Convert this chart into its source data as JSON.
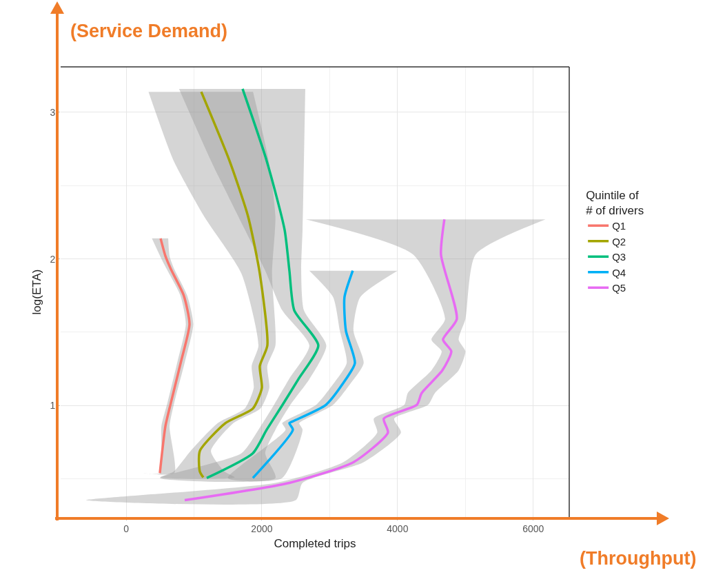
{
  "chart_data": {
    "type": "line",
    "xlabel": "Completed trips",
    "ylabel": "log(ETA)",
    "legend_title": "Quintile of\n# of drivers",
    "annotations": [
      "(Service Demand)",
      "(Throughput)"
    ],
    "xlim": [
      -965,
      6530
    ],
    "xticks": [
      0,
      2000,
      4000,
      6000
    ],
    "ylim": [
      0.24,
      3.31
    ],
    "yticks": [
      1,
      2,
      3
    ],
    "grid": true,
    "legend": "right",
    "line_style": "solid",
    "marker": "none",
    "series": [
      {
        "type": "area",
        "color": "#969696",
        "x": [
          620,
          640,
          710,
          900,
          990,
          870,
          710,
          640,
          710,
          240,
          497,
          520,
          610,
          760,
          880,
          800,
          600,
          500,
          380
        ],
        "values": [
          2.14,
          2.02,
          1.93,
          1.75,
          1.555,
          1.306,
          1.02,
          0.86,
          0.54,
          0.54,
          0.54,
          0.86,
          1.02,
          1.306,
          1.555,
          1.75,
          1.93,
          2.02,
          2.14
        ]
      },
      {
        "type": "area",
        "color": "#969696",
        "x": [
          1870,
          2100,
          2200,
          2150,
          2200,
          2080,
          2110,
          1980,
          1580,
          1250,
          1450,
          1600,
          500,
          700,
          950,
          1350,
          1750,
          1880,
          1850,
          1950,
          1700,
          1150,
          700,
          330
        ],
        "values": [
          3.14,
          2.67,
          2.29,
          1.9,
          1.41,
          1.27,
          1.12,
          0.98,
          0.88,
          0.69,
          0.55,
          0.51,
          0.51,
          0.55,
          0.69,
          0.88,
          0.98,
          1.12,
          1.27,
          1.41,
          1.9,
          2.29,
          2.67,
          3.14
        ]
      },
      {
        "type": "area",
        "color": "#969696",
        "x": [
          2640,
          2620,
          2600,
          2580,
          2620,
          2950,
          2700,
          2420,
          2200,
          2050,
          2200,
          500,
          1700,
          1950,
          2180,
          2400,
          2700,
          2300,
          2050,
          1750,
          1250,
          780
        ],
        "values": [
          3.16,
          2.67,
          2.2,
          1.92,
          1.65,
          1.41,
          1.18,
          1.005,
          0.835,
          0.675,
          0.506,
          0.506,
          0.675,
          0.835,
          1.005,
          1.18,
          1.41,
          1.65,
          1.92,
          2.2,
          2.67,
          3.16
        ]
      },
      {
        "type": "area",
        "color": "#969696",
        "x": [
          4000,
          3450,
          3350,
          3500,
          3300,
          3050,
          2600,
          2550,
          2600,
          2300,
          1500,
          2350,
          2300,
          2350,
          2800,
          3050,
          3250,
          3150,
          3050,
          2700
        ],
        "values": [
          1.92,
          1.74,
          1.51,
          1.29,
          1.146,
          1.005,
          0.897,
          0.88,
          0.835,
          0.506,
          0.506,
          0.835,
          0.88,
          0.897,
          1.005,
          1.146,
          1.29,
          1.51,
          1.74,
          1.92
        ]
      },
      {
        "type": "area",
        "color": "#969696",
        "x": [
          6180,
          5150,
          5000,
          4900,
          5000,
          4900,
          4550,
          4450,
          3950,
          4050,
          3500,
          2600,
          2500,
          -590,
          2200,
          3200,
          3700,
          3650,
          4100,
          4150,
          4500,
          4650,
          4500,
          4700,
          4230,
          2650
        ],
        "values": [
          2.27,
          2.03,
          1.59,
          1.45,
          1.37,
          1.24,
          1.085,
          1.005,
          0.911,
          0.816,
          0.614,
          0.473,
          0.355,
          0.355,
          0.473,
          0.614,
          0.816,
          0.911,
          1.005,
          1.085,
          1.24,
          1.37,
          1.45,
          1.59,
          2.03,
          2.27
        ]
      },
      {
        "name": "Q1",
        "color": "#f8766d",
        "x": [
          508,
          579,
          660,
          850,
          934,
          812,
          660,
          579,
          497
        ],
        "values": [
          2.14,
          2.02,
          1.93,
          1.75,
          1.555,
          1.306,
          1.02,
          0.86,
          0.54
        ]
      },
      {
        "name": "Q2",
        "color": "#a3a500",
        "x": [
          1107,
          1523,
          1797,
          1970,
          2081,
          1970,
          2000,
          1868,
          1462,
          1086,
          1086,
          1137
        ],
        "values": [
          3.14,
          2.67,
          2.29,
          1.9,
          1.41,
          1.27,
          1.12,
          0.98,
          0.88,
          0.69,
          0.55,
          0.51
        ]
      },
      {
        "name": "Q3",
        "color": "#00bf7d",
        "x": [
          1716,
          2071,
          2335,
          2406,
          2477,
          2832,
          2538,
          2305,
          2071,
          1868,
          1188
        ],
        "values": [
          3.16,
          2.67,
          2.2,
          1.92,
          1.65,
          1.41,
          1.18,
          1.005,
          0.835,
          0.675,
          0.506
        ]
      },
      {
        "name": "Q4",
        "color": "#00b0f6",
        "x": [
          3340,
          3218,
          3239,
          3371,
          3188,
          2944,
          2477,
          2406,
          2457,
          1868
        ],
        "values": [
          1.92,
          1.74,
          1.51,
          1.29,
          1.146,
          1.005,
          0.897,
          0.88,
          0.835,
          0.506
        ]
      },
      {
        "name": "Q5",
        "color": "#e76bf3",
        "x": [
          4690,
          4640,
          4873,
          4670,
          4792,
          4660,
          4355,
          4284,
          3797,
          3858,
          3350,
          2406,
          863
        ],
        "values": [
          2.27,
          2.03,
          1.59,
          1.45,
          1.37,
          1.24,
          1.085,
          1.005,
          0.911,
          0.816,
          0.614,
          0.473,
          0.355
        ]
      }
    ]
  }
}
